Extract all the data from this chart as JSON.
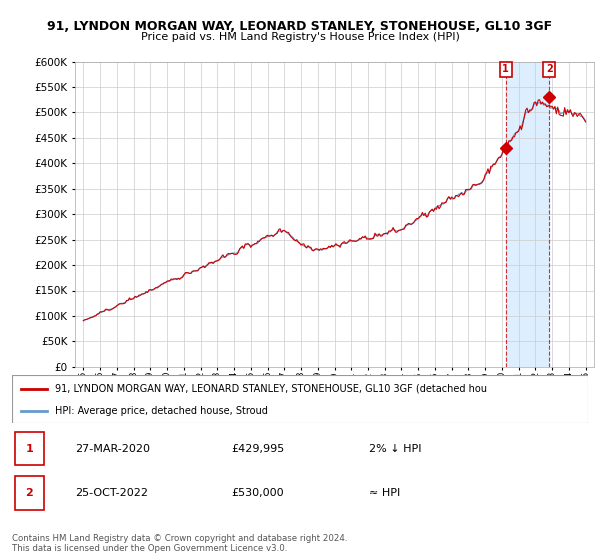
{
  "title": "91, LYNDON MORGAN WAY, LEONARD STANLEY, STONEHOUSE, GL10 3GF",
  "subtitle": "Price paid vs. HM Land Registry's House Price Index (HPI)",
  "background_color": "#ffffff",
  "plot_bg_color": "#ffffff",
  "grid_color": "#cccccc",
  "ylim": [
    0,
    600000
  ],
  "yticks": [
    0,
    50000,
    100000,
    150000,
    200000,
    250000,
    300000,
    350000,
    400000,
    450000,
    500000,
    550000,
    600000
  ],
  "sale1_year": 2020.23,
  "sale1_price": 429995,
  "sale2_year": 2022.83,
  "sale2_price": 530000,
  "legend_text_red": "91, LYNDON MORGAN WAY, LEONARD STANLEY, STONEHOUSE, GL10 3GF (detached hou",
  "legend_text_blue": "HPI: Average price, detached house, Stroud",
  "table_row1": [
    "1",
    "27-MAR-2020",
    "£429,995",
    "2% ↓ HPI"
  ],
  "table_row2": [
    "2",
    "25-OCT-2022",
    "£530,000",
    "≈ HPI"
  ],
  "footer": "Contains HM Land Registry data © Crown copyright and database right 2024.\nThis data is licensed under the Open Government Licence v3.0.",
  "red_color": "#cc0000",
  "blue_color": "#6699cc",
  "shade_color": "#ddeeff",
  "xtick_labels": [
    "95",
    "96",
    "97",
    "98",
    "99",
    "00",
    "01",
    "02",
    "03",
    "04",
    "05",
    "06",
    "07",
    "08",
    "09",
    "10",
    "11",
    "12",
    "13",
    "14",
    "15",
    "16",
    "17",
    "18",
    "19",
    "20",
    "21",
    "22",
    "23",
    "24",
    "25"
  ]
}
